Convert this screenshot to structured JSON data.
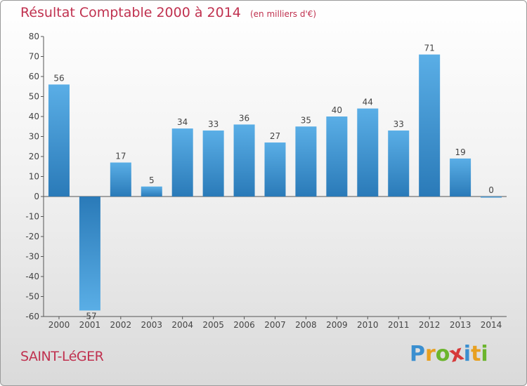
{
  "title": "Résultat Comptable 2000 à 2014",
  "subtitle": "(en milliers d'€)",
  "commune": "SAINT-LéGER",
  "logo": {
    "letters": [
      "P",
      "r",
      "o",
      "x",
      "i",
      "t",
      "i"
    ],
    "colors": [
      "#3a8fd0",
      "#e8a020",
      "#6cb52d",
      "#d63a3a",
      "#3a8fd0",
      "#e8a020",
      "#6cb52d"
    ]
  },
  "colors": {
    "bar_light": "#5aaee6",
    "bar_dark": "#2a7ab8",
    "text_accent": "#c0314f"
  },
  "chart_data": {
    "type": "bar",
    "categories": [
      "2000",
      "2001",
      "2002",
      "2003",
      "2004",
      "2005",
      "2006",
      "2007",
      "2008",
      "2009",
      "2010",
      "2011",
      "2012",
      "2013",
      "2014"
    ],
    "values": [
      56,
      -57,
      17,
      5,
      34,
      33,
      36,
      27,
      35,
      40,
      44,
      33,
      71,
      19,
      0
    ],
    "ylim": [
      -60,
      80
    ],
    "yticks": [
      80,
      70,
      60,
      50,
      40,
      30,
      20,
      10,
      0,
      -10,
      -20,
      -30,
      -40,
      -50,
      -60
    ],
    "grid": false
  }
}
